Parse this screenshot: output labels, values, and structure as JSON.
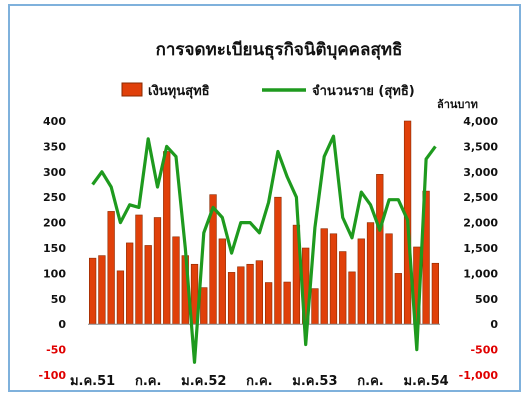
{
  "chart_data": {
    "type": "bar",
    "title": "การจดทะเบียนธุรกิจนิติบุคคลสุทธิ",
    "legend_position": "top",
    "grid": false,
    "colors": {
      "bars": "#e0400a",
      "bar_edge": "#8a2a00",
      "line": "#1e9a1e"
    },
    "series": [
      {
        "name": "เงินทุนสุทธิ",
        "axis": "left",
        "type": "bar",
        "values": [
          130,
          135,
          222,
          105,
          160,
          215,
          155,
          210,
          340,
          172,
          135,
          118,
          72,
          255,
          168,
          102,
          113,
          118,
          125,
          82,
          250,
          83,
          195,
          150,
          70,
          188,
          178,
          143,
          103,
          168,
          200,
          295,
          178,
          100,
          400,
          152,
          262,
          120
        ]
      },
      {
        "name": "จำนวนราย (สุทธิ)",
        "axis": "right",
        "type": "line",
        "values": [
          2750,
          3000,
          2700,
          2000,
          2350,
          2300,
          3650,
          2700,
          3500,
          3300,
          1500,
          -750,
          1800,
          2300,
          2100,
          1400,
          2000,
          2000,
          1800,
          2400,
          3400,
          2900,
          2500,
          -400,
          1900,
          3300,
          3700,
          2100,
          1700,
          2600,
          2350,
          1850,
          2450,
          2450,
          2050,
          -500,
          3250,
          3500
        ]
      }
    ],
    "y_left": {
      "min": -100,
      "max": 400,
      "ticks": [
        "400",
        "350",
        "300",
        "250",
        "200",
        "150",
        "100",
        "50",
        "0",
        "-50",
        "-100"
      ]
    },
    "y_right": {
      "min": -1000,
      "max": 4000,
      "label": "ล้านบาท",
      "ticks": [
        "4,000",
        "3,500",
        "3,000",
        "2,500",
        "2,000",
        "1,500",
        "1,000",
        "500",
        "0",
        "-500",
        "-1,000"
      ]
    },
    "x_tick_labels": [
      "ม.ค.51",
      "ก.ค.",
      "ม.ค.52",
      "ก.ค.",
      "ม.ค.53",
      "ก.ค.",
      "ม.ค.54"
    ],
    "x_tick_indices": [
      0,
      6,
      12,
      18,
      24,
      30,
      36
    ]
  }
}
